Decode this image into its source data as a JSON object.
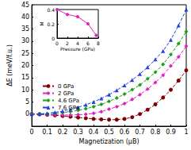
{
  "chart_data": [
    {
      "type": "line",
      "x_label": "Magnetization (μB)",
      "y_label": "ΔE (meV/f.u.)",
      "x": [
        0,
        0.05,
        0.1,
        0.15,
        0.2,
        0.25,
        0.3,
        0.35,
        0.4,
        0.45,
        0.5,
        0.55,
        0.6,
        0.65,
        0.7,
        0.75,
        0.8,
        0.85,
        0.9,
        0.95,
        1
      ],
      "xlim": [
        0,
        1
      ],
      "xticks": [
        0,
        0.1,
        0.2,
        0.3,
        0.4,
        0.5,
        0.6,
        0.7,
        0.8,
        0.9,
        1
      ],
      "ylim": [
        -5,
        45
      ],
      "yticks": [
        0,
        5,
        10,
        15,
        20,
        25,
        30,
        35,
        40,
        45
      ],
      "grid": false,
      "legend": "left",
      "line_style": "dashed",
      "series": [
        {
          "name": "0 GPa",
          "color": "#800000",
          "marker": "circle",
          "values": [
            0,
            -0.1,
            -0.3,
            -0.5,
            -0.8,
            -1.1,
            -1.4,
            -1.7,
            -2.0,
            -2.2,
            -2.3,
            -2.3,
            -2.0,
            -1.3,
            0,
            1.8,
            4,
            6.8,
            10,
            13.8,
            18
          ]
        },
        {
          "name": "2 GPa",
          "color": "#e020c0",
          "marker": "diamond",
          "values": [
            0,
            -0.1,
            -0.2,
            -0.3,
            -0.4,
            -0.4,
            -0.3,
            -0.1,
            0.3,
            1,
            2,
            3,
            4.3,
            6,
            8,
            10.3,
            13,
            16,
            19.8,
            23.5,
            28
          ]
        },
        {
          "name": "4.6 GPa",
          "color": "#1aa01a",
          "marker": "diamond",
          "values": [
            0,
            0,
            0.1,
            0.3,
            0.6,
            1,
            1.5,
            2.2,
            3,
            4,
            5.2,
            6.6,
            8.2,
            10,
            12,
            14.5,
            17.2,
            20.5,
            24.5,
            29,
            34
          ]
        },
        {
          "name": "7.6 GPa",
          "color": "#2040e0",
          "marker": "triangle",
          "values": [
            0,
            0.1,
            0.3,
            0.7,
            1.2,
            1.9,
            2.8,
            3.8,
            5,
            6.4,
            8,
            9.8,
            11.8,
            14,
            16.5,
            19.3,
            22.5,
            26,
            30.5,
            36.5,
            43
          ]
        }
      ]
    },
    {
      "type": "line",
      "x_label": "Pressure (GPa)",
      "y_label": "M",
      "x": [
        0,
        2,
        4,
        6,
        7.6
      ],
      "xlim": [
        0,
        8
      ],
      "xticks": [
        0,
        2,
        4,
        6,
        8
      ],
      "ylim": [
        0,
        0.4
      ],
      "yticks": [
        0,
        0.2,
        0.4
      ],
      "grid": false,
      "line_style": "solid",
      "series": [
        {
          "name": "M",
          "color": "#e020c0",
          "marker": "circle",
          "values": [
            0.4,
            0.33,
            0.3,
            0.2,
            0.04
          ]
        }
      ]
    }
  ]
}
